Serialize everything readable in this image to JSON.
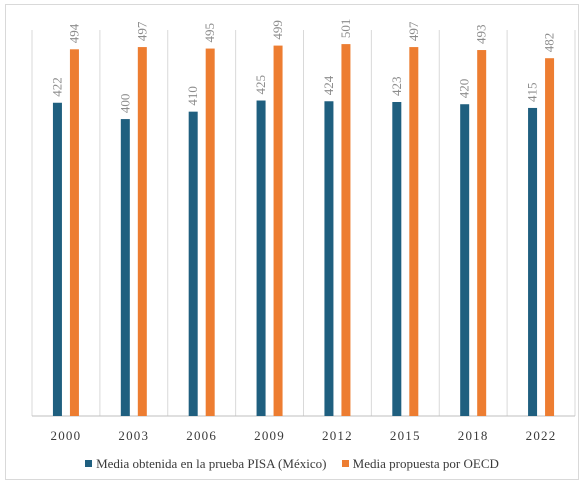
{
  "chart_data": {
    "type": "bar",
    "title": "",
    "xlabel": "",
    "ylabel": "",
    "ylim": [
      0,
      520
    ],
    "grid": "vertical separators between categories",
    "legend": "bottom",
    "categories": [
      "2000",
      "2003",
      "2006",
      "2009",
      "2012",
      "2015",
      "2018",
      "2022"
    ],
    "series": [
      {
        "name": "Media obtenida en la prueba PISA (México)",
        "color": "#1f5f7f",
        "values": [
          422,
          400,
          410,
          425,
          424,
          423,
          420,
          415
        ]
      },
      {
        "name": "Media propuesta por OECD",
        "color": "#ed7d31",
        "values": [
          494,
          497,
          495,
          499,
          501,
          497,
          493,
          482
        ]
      }
    ]
  }
}
